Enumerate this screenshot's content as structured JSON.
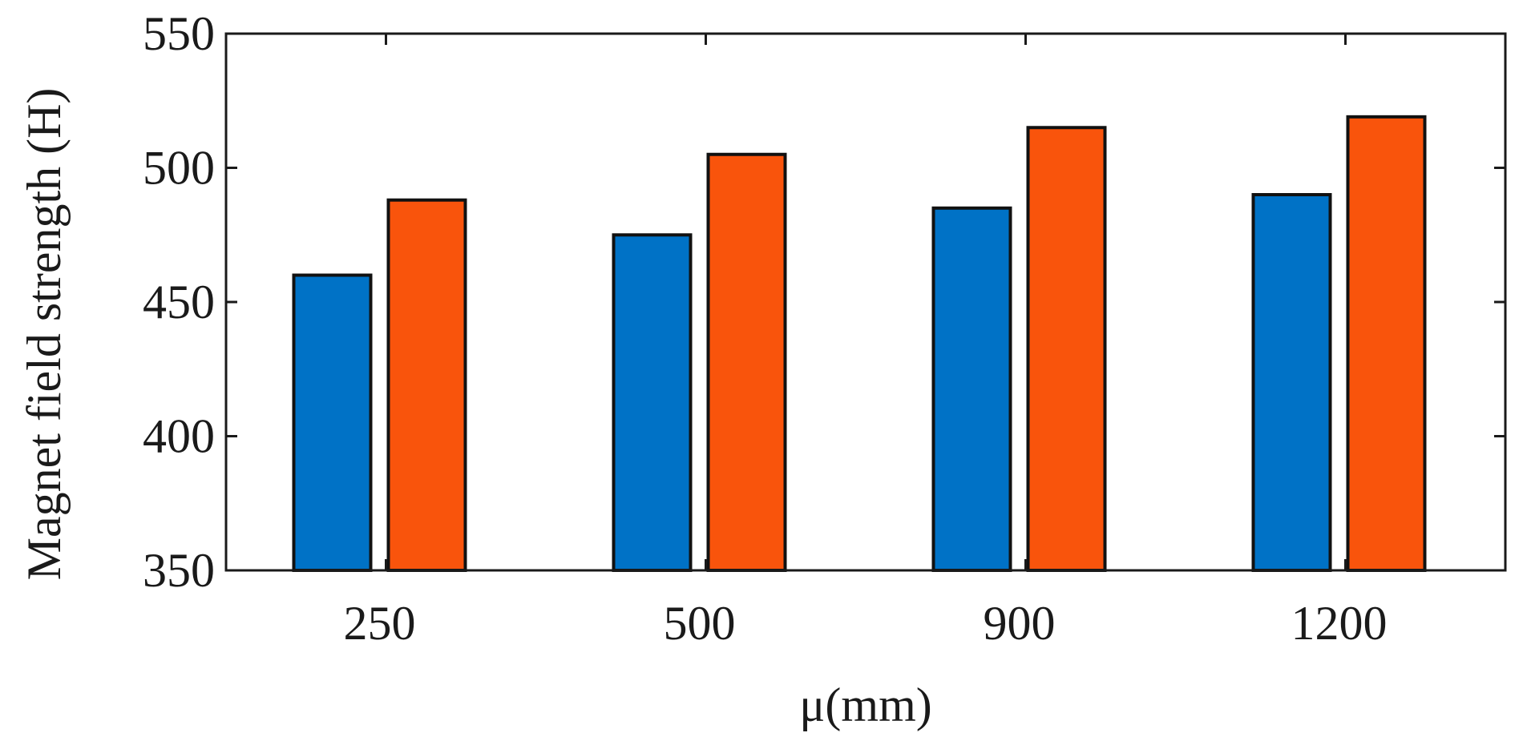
{
  "chart_data": {
    "type": "bar",
    "title": "",
    "xlabel": "μ(mm)",
    "ylabel": "Magnet field strength (H)",
    "categories": [
      "250",
      "500",
      "900",
      "1200"
    ],
    "series": [
      {
        "values": [
          460,
          475,
          485,
          490
        ],
        "color": "#0072C6"
      },
      {
        "values": [
          488,
          505,
          515,
          519
        ],
        "color": "#F9540C"
      }
    ],
    "ylim": [
      350,
      550
    ],
    "yticks": [
      350,
      400,
      450,
      500,
      550
    ],
    "ytick_labels": [
      "350",
      "400",
      "450",
      "500",
      "550"
    ],
    "grid": false,
    "legend": "none"
  }
}
